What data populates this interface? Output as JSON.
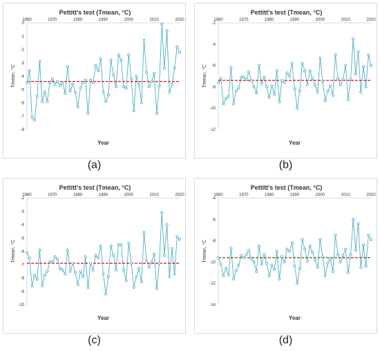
{
  "captions": [
    "(a)",
    "(b)",
    "(c)",
    "(d)"
  ],
  "colors": {
    "series": "#4bacc6",
    "marker_fill": "#ffffff",
    "threshold": "#e8202a",
    "threshold_d": "#7a6a2a",
    "axis": "#d9d9d9",
    "text": "#333333"
  },
  "chart_data": [
    {
      "type": "line",
      "title": "Pettitt's test (Tmean, °C)",
      "xlabel": "Year",
      "ylabel": "Tmean, °C",
      "xlim": [
        1960,
        2020
      ],
      "ylim": [
        -8,
        0
      ],
      "xticks": [
        1960,
        1970,
        1980,
        1990,
        2000,
        2010,
        2020
      ],
      "yticks": [
        0,
        -1,
        -2,
        -3,
        -4,
        -5,
        -6,
        -7,
        -8
      ],
      "x": [
        1960,
        1961,
        1962,
        1963,
        1964,
        1965,
        1966,
        1967,
        1968,
        1969,
        1970,
        1971,
        1972,
        1973,
        1974,
        1975,
        1976,
        1977,
        1978,
        1979,
        1980,
        1981,
        1982,
        1983,
        1984,
        1985,
        1986,
        1987,
        1988,
        1989,
        1990,
        1991,
        1992,
        1993,
        1994,
        1995,
        1996,
        1997,
        1998,
        1999,
        2000,
        2001,
        2002,
        2003,
        2004,
        2005,
        2006,
        2007,
        2008,
        2009,
        2010,
        2011,
        2012,
        2013,
        2014,
        2015,
        2016,
        2017,
        2018,
        2019,
        2020
      ],
      "series": [
        {
          "values": [
            -4.5,
            -3.6,
            -7.1,
            -7.3,
            -5.5,
            -2.9,
            -5.9,
            -5.2,
            -5.9,
            -4.5,
            -4.2,
            -4.6,
            -4.4,
            -4.7,
            -4.5,
            -5.3,
            -3.3,
            -5.1,
            -4.6,
            -5.2,
            -6.3,
            -4.9,
            -4.5,
            -4.3,
            -6.8,
            -4.3,
            -4.5,
            -3.2,
            -3.6,
            -2.7,
            -5.2,
            -5.9,
            -5.4,
            -2.8,
            -3.9,
            -4.8,
            -2.4,
            -2.8,
            -4.8,
            -4.9,
            -2.4,
            -4.2,
            -6.6,
            -4.0,
            -4.6,
            -6.0,
            -1.3,
            -3.7,
            -4.8,
            -4.4,
            -3.8,
            -6.8,
            -4.7,
            -0.1,
            -3.4,
            -0.6,
            -5.2,
            -4.6,
            -3.4,
            -1.8,
            -2.2
          ]
        }
      ],
      "threshold": -4.4
    },
    {
      "type": "line",
      "title": "Pettitt's test (Tmean, °C)",
      "xlabel": "Year",
      "ylabel": "Tmean, °C",
      "xlim": [
        1960,
        2020
      ],
      "ylim": [
        -12,
        -2
      ],
      "xticks": [
        1960,
        1970,
        1980,
        1990,
        2000,
        2010,
        2020
      ],
      "yticks": [
        -2,
        -4,
        -6,
        -8,
        -10,
        -12
      ],
      "x": [
        1960,
        1961,
        1962,
        1963,
        1964,
        1965,
        1966,
        1967,
        1968,
        1969,
        1970,
        1971,
        1972,
        1973,
        1974,
        1975,
        1976,
        1977,
        1978,
        1979,
        1980,
        1981,
        1982,
        1983,
        1984,
        1985,
        1986,
        1987,
        1988,
        1989,
        1990,
        1991,
        1992,
        1993,
        1994,
        1995,
        1996,
        1997,
        1998,
        1999,
        2000,
        2001,
        2002,
        2003,
        2004,
        2005,
        2006,
        2007,
        2008,
        2009,
        2010,
        2011,
        2012,
        2013,
        2014,
        2015,
        2016,
        2017,
        2018,
        2019,
        2020
      ],
      "series": [
        {
          "values": [
            -7.6,
            -7.2,
            -9.6,
            -9.1,
            -8.9,
            -6.2,
            -9.6,
            -8.4,
            -8.1,
            -7.1,
            -7.1,
            -7.3,
            -6.6,
            -7.4,
            -8.0,
            -8.6,
            -6.0,
            -7.7,
            -7.1,
            -8.0,
            -9.0,
            -7.9,
            -8.7,
            -6.5,
            -9.4,
            -7.4,
            -7.6,
            -6.7,
            -7.0,
            -5.8,
            -8.2,
            -10.0,
            -8.4,
            -5.8,
            -6.5,
            -7.8,
            -6.5,
            -7.2,
            -7.8,
            -8.5,
            -5.3,
            -7.5,
            -9.3,
            -8.4,
            -7.9,
            -8.8,
            -5.0,
            -7.2,
            -7.8,
            -7.3,
            -6.0,
            -9.2,
            -7.3,
            -3.5,
            -6.8,
            -4.7,
            -8.5,
            -6.1,
            -8.0,
            -5.0,
            -6.0
          ]
        }
      ],
      "threshold": -7.4
    },
    {
      "type": "line",
      "title": "Pettitt's test (Tmean, °C)",
      "xlabel": "Year",
      "ylabel": "Tmean, °C",
      "xlim": [
        1960,
        2020
      ],
      "ylim": [
        -10,
        -2
      ],
      "xticks": [
        1960,
        1970,
        1980,
        1990,
        2000,
        2010,
        2020
      ],
      "yticks": [
        -2,
        -3,
        -4,
        -5,
        -6,
        -7,
        -8,
        -9,
        -10
      ],
      "x": [
        1960,
        1961,
        1962,
        1963,
        1964,
        1965,
        1966,
        1967,
        1968,
        1969,
        1970,
        1971,
        1972,
        1973,
        1974,
        1975,
        1976,
        1977,
        1978,
        1979,
        1980,
        1981,
        1982,
        1983,
        1984,
        1985,
        1986,
        1987,
        1988,
        1989,
        1990,
        1991,
        1992,
        1993,
        1994,
        1995,
        1996,
        1997,
        1998,
        1999,
        2000,
        2001,
        2002,
        2003,
        2004,
        2005,
        2006,
        2007,
        2008,
        2009,
        2010,
        2011,
        2012,
        2013,
        2014,
        2015,
        2016,
        2017,
        2018,
        2019,
        2020
      ],
      "series": [
        {
          "values": [
            -6.1,
            -6.5,
            -8.6,
            -7.8,
            -8.1,
            -5.9,
            -8.6,
            -7.8,
            -7.5,
            -6.8,
            -6.8,
            -6.4,
            -6.6,
            -7.3,
            -7.4,
            -7.7,
            -5.9,
            -7.5,
            -6.9,
            -7.6,
            -8.5,
            -7.5,
            -7.9,
            -6.4,
            -8.7,
            -6.9,
            -7.4,
            -6.3,
            -6.5,
            -5.6,
            -7.7,
            -9.2,
            -7.9,
            -5.6,
            -6.3,
            -7.4,
            -5.5,
            -5.5,
            -7.4,
            -8.2,
            -5.4,
            -6.9,
            -8.7,
            -7.9,
            -7.3,
            -8.3,
            -4.6,
            -6.7,
            -7.2,
            -6.8,
            -6.2,
            -8.8,
            -6.9,
            -3.1,
            -6.3,
            -4.0,
            -7.9,
            -5.8,
            -7.7,
            -4.9,
            -5.1
          ]
        }
      ],
      "threshold": -6.9
    },
    {
      "type": "line",
      "title": "Pettitt's test (Tmean, °C)",
      "xlabel": "Year",
      "ylabel": "Tmean, °C",
      "xlim": [
        1960,
        2020
      ],
      "ylim": [
        -14,
        -4
      ],
      "xticks": [
        1960,
        1970,
        1980,
        1990,
        2000,
        2010,
        2020
      ],
      "yticks": [
        -4,
        -6,
        -8,
        -10,
        -12,
        -14
      ],
      "x": [
        1960,
        1961,
        1962,
        1963,
        1964,
        1965,
        1966,
        1967,
        1968,
        1969,
        1970,
        1971,
        1972,
        1973,
        1974,
        1975,
        1976,
        1977,
        1978,
        1979,
        1980,
        1981,
        1982,
        1983,
        1984,
        1985,
        1986,
        1987,
        1988,
        1989,
        1990,
        1991,
        1992,
        1993,
        1994,
        1995,
        1996,
        1997,
        1998,
        1999,
        2000,
        2001,
        2002,
        2003,
        2004,
        2005,
        2006,
        2007,
        2008,
        2009,
        2010,
        2011,
        2012,
        2013,
        2014,
        2015,
        2016,
        2017,
        2018,
        2019,
        2020
      ],
      "series": [
        {
          "values": [
            -9.6,
            -10.2,
            -11.3,
            -10.6,
            -11.2,
            -8.7,
            -11.6,
            -10.8,
            -10.3,
            -9.4,
            -9.6,
            -9.3,
            -8.9,
            -9.7,
            -10.0,
            -10.9,
            -8.5,
            -10.2,
            -9.3,
            -10.1,
            -11.3,
            -10.3,
            -10.7,
            -9.0,
            -11.6,
            -9.5,
            -10.0,
            -8.8,
            -9.0,
            -8.2,
            -10.4,
            -12.0,
            -10.6,
            -7.9,
            -8.8,
            -9.9,
            -8.5,
            -9.1,
            -9.8,
            -10.5,
            -7.9,
            -9.5,
            -11.3,
            -10.1,
            -9.7,
            -10.9,
            -7.5,
            -9.3,
            -10.0,
            -9.4,
            -8.8,
            -11.0,
            -9.3,
            -6.0,
            -8.9,
            -6.4,
            -10.5,
            -8.4,
            -10.4,
            -7.5,
            -7.9
          ]
        }
      ],
      "threshold": -9.6
    }
  ]
}
